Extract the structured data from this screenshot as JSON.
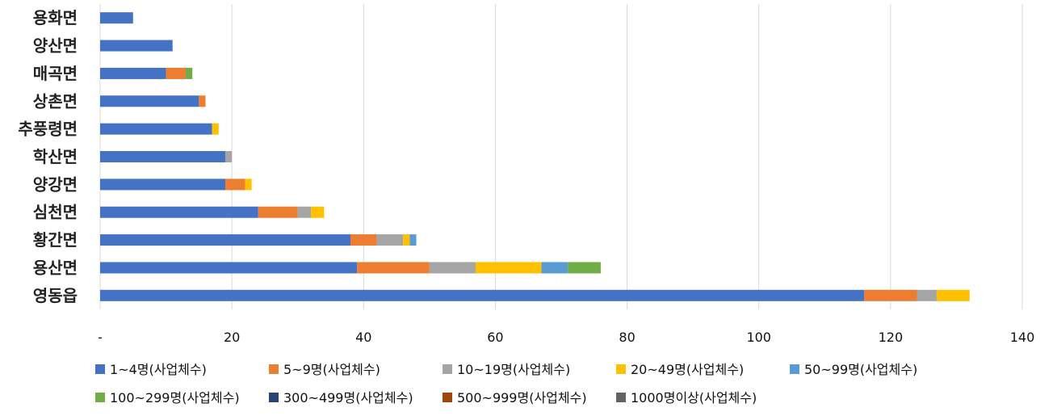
{
  "chart_data": {
    "type": "bar",
    "orientation": "horizontal",
    "stacked": true,
    "categories": [
      "용화면",
      "양산면",
      "매곡면",
      "상촌면",
      "추풍령면",
      "학산면",
      "양강면",
      "심천면",
      "황간면",
      "용산면",
      "영동읍"
    ],
    "xlim": [
      0,
      140
    ],
    "xticks": [
      0,
      20,
      40,
      60,
      80,
      100,
      120,
      140
    ],
    "xtick_labels": [
      "-",
      "20",
      "40",
      "60",
      "80",
      "100",
      "120",
      "140"
    ],
    "grid": "vertical",
    "legend_position": "bottom",
    "series": [
      {
        "name": "1~4명(사업체수)",
        "color": "#4472C4",
        "values": [
          5,
          11,
          10,
          15,
          17,
          19,
          19,
          24,
          38,
          39,
          116
        ]
      },
      {
        "name": "5~9명(사업체수)",
        "color": "#ED7D31",
        "values": [
          0,
          0,
          3,
          1,
          0,
          0,
          3,
          6,
          4,
          11,
          8
        ]
      },
      {
        "name": "10~19명(사업체수)",
        "color": "#A5A5A5",
        "values": [
          0,
          0,
          0,
          0,
          0,
          1,
          0,
          2,
          4,
          7,
          3
        ]
      },
      {
        "name": "20~49명(사업체수)",
        "color": "#FFC000",
        "values": [
          0,
          0,
          0,
          0,
          1,
          0,
          1,
          2,
          1,
          10,
          5
        ]
      },
      {
        "name": "50~99명(사업체수)",
        "color": "#5B9BD5",
        "values": [
          0,
          0,
          0,
          0,
          0,
          0,
          0,
          0,
          1,
          4,
          0
        ]
      },
      {
        "name": "100~299명(사업체수)",
        "color": "#70AD47",
        "values": [
          0,
          0,
          1,
          0,
          0,
          0,
          0,
          0,
          0,
          5,
          0
        ]
      },
      {
        "name": "300~499명(사업체수)",
        "color": "#264478",
        "values": [
          0,
          0,
          0,
          0,
          0,
          0,
          0,
          0,
          0,
          0,
          0
        ]
      },
      {
        "name": "500~999명(사업체수)",
        "color": "#9E480E",
        "values": [
          0,
          0,
          0,
          0,
          0,
          0,
          0,
          0,
          0,
          0,
          0
        ]
      },
      {
        "name": "1000명이상(사업체수)",
        "color": "#636363",
        "values": [
          0,
          0,
          0,
          0,
          0,
          0,
          0,
          0,
          0,
          0,
          0
        ]
      }
    ]
  }
}
